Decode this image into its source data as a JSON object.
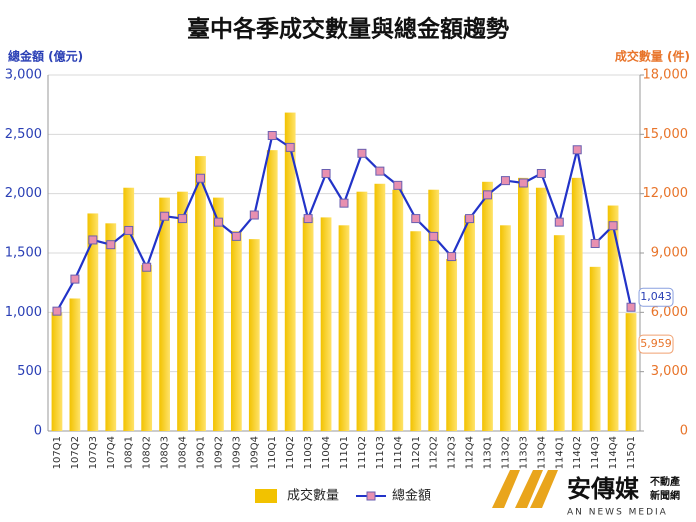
{
  "chart_data": {
    "type": "bar-line",
    "title": "臺中各季成交數量與總金額趨勢",
    "ylabel": "總金額 (億元)",
    "y2label": "成交數量 (件)",
    "categories": [
      "107Q1",
      "107Q2",
      "107Q3",
      "107Q4",
      "108Q1",
      "108Q2",
      "108Q3",
      "108Q4",
      "109Q1",
      "109Q2",
      "109Q3",
      "109Q4",
      "110Q1",
      "110Q2",
      "110Q3",
      "110Q4",
      "111Q1",
      "111Q2",
      "111Q3",
      "111Q4",
      "112Q1",
      "112Q2",
      "112Q3",
      "112Q4",
      "113Q1",
      "113Q2",
      "113Q3",
      "113Q4",
      "114Q1",
      "114Q2",
      "114Q3",
      "114Q4",
      "115Q1"
    ],
    "series": [
      {
        "name": "成交數量",
        "type": "bar",
        "axis": "y2",
        "color": "#f2c200",
        "values": [
          6000,
          6700,
          11000,
          10500,
          12300,
          8400,
          11800,
          12100,
          13900,
          11800,
          10100,
          9700,
          14200,
          16100,
          10800,
          10800,
          10400,
          12100,
          12500,
          12200,
          10100,
          12200,
          8700,
          10900,
          12600,
          10400,
          12800,
          12300,
          9900,
          12800,
          8300,
          11400,
          5959
        ],
        "value_labels": [
          null,
          null,
          null,
          null,
          null,
          null,
          null,
          null,
          null,
          null,
          null,
          null,
          null,
          null,
          null,
          null,
          null,
          null,
          null,
          null,
          null,
          null,
          null,
          null,
          null,
          null,
          null,
          null,
          null,
          null,
          null,
          null,
          "5,959"
        ]
      },
      {
        "name": "總金額",
        "type": "line",
        "color": "#2233c8",
        "marker_color": "#e890b0",
        "values": [
          1010,
          1280,
          1610,
          1570,
          1690,
          1380,
          1810,
          1790,
          2130,
          1760,
          1640,
          1820,
          2490,
          2390,
          1790,
          2170,
          1920,
          2340,
          2190,
          2070,
          1790,
          1640,
          1470,
          1790,
          1990,
          2110,
          2090,
          2170,
          1760,
          2370,
          1580,
          1730,
          1043
        ],
        "value_labels": [
          null,
          null,
          null,
          null,
          null,
          null,
          null,
          null,
          null,
          null,
          null,
          null,
          null,
          null,
          null,
          null,
          null,
          null,
          null,
          null,
          null,
          null,
          null,
          null,
          null,
          null,
          null,
          null,
          null,
          null,
          null,
          null,
          "1,043"
        ]
      }
    ],
    "ylim": [
      0,
      3000
    ],
    "yticks": [
      0,
      500,
      {
        "value": 1000,
        "label": "1,000"
      },
      {
        "value": 1500,
        "label": "1,500"
      },
      {
        "value": 2000,
        "label": "2,000"
      },
      {
        "value": 2500,
        "label": "2,500"
      },
      {
        "value": 3000,
        "label": "3,000"
      }
    ],
    "y2lim": [
      0,
      18000
    ],
    "y2ticks": [
      0,
      {
        "value": 3000,
        "label": "3,000"
      },
      {
        "value": 6000,
        "label": "6,000"
      },
      {
        "value": 9000,
        "label": "9,000"
      },
      {
        "value": 12000,
        "label": "12,000"
      },
      {
        "value": 15000,
        "label": "15,000"
      },
      {
        "value": 18000,
        "label": "18,000"
      }
    ],
    "grid": true
  },
  "logo": {
    "name": "安傳媒",
    "sub": "AN NEWS MEDIA",
    "tag1": "不動產",
    "tag2": "新聞網"
  }
}
